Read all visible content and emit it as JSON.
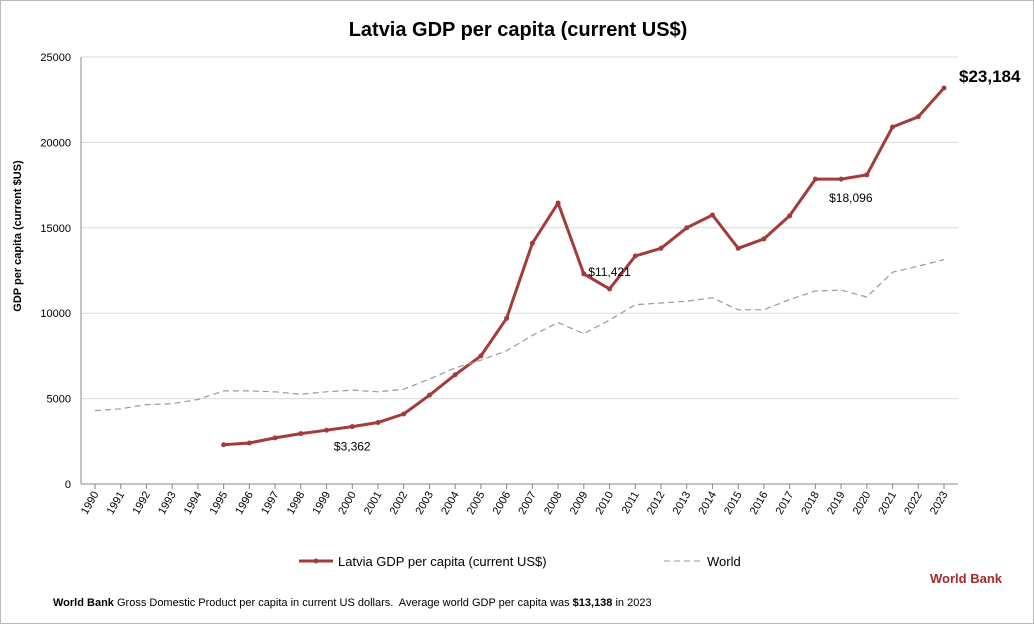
{
  "chart_data": {
    "type": "line",
    "title": "Latvia GDP per capita (current US$)",
    "ylabel": "GDP per capita (current $US)",
    "xlabel": "",
    "ylim": [
      0,
      25000
    ],
    "yticks": [
      0,
      5000,
      10000,
      15000,
      20000,
      25000
    ],
    "x": [
      1990,
      1991,
      1992,
      1993,
      1994,
      1995,
      1996,
      1997,
      1998,
      1999,
      2000,
      2001,
      2002,
      2003,
      2004,
      2005,
      2006,
      2007,
      2008,
      2009,
      2010,
      2011,
      2012,
      2013,
      2014,
      2015,
      2016,
      2017,
      2018,
      2019,
      2020,
      2021,
      2022,
      2023
    ],
    "grid": "horizontal",
    "legend": "bottom",
    "series": [
      {
        "name": "Latvia GDP per capita (current US$)",
        "color": "#a33b3b",
        "style": "solid-markers",
        "values": [
          null,
          null,
          null,
          null,
          null,
          2300,
          2400,
          2700,
          2950,
          3150,
          3362,
          3600,
          4100,
          5200,
          6400,
          7500,
          9700,
          14100,
          16450,
          12300,
          11421,
          13350,
          13800,
          15000,
          15750,
          13800,
          14350,
          15700,
          17850,
          17850,
          18096,
          20900,
          21500,
          23184
        ]
      },
      {
        "name": "World",
        "color": "#999999",
        "style": "dashed",
        "values": [
          4300,
          4400,
          4650,
          4700,
          4950,
          5450,
          5450,
          5400,
          5250,
          5400,
          5500,
          5400,
          5550,
          6150,
          6800,
          7250,
          7800,
          8700,
          9450,
          8800,
          9600,
          10500,
          10600,
          10700,
          10900,
          10200,
          10200,
          10800,
          11300,
          11350,
          10950,
          12400,
          12750,
          13138
        ]
      }
    ],
    "annotations": [
      {
        "text": "$3,362",
        "year": 2000
      },
      {
        "text": "$11,421",
        "year": 2010
      },
      {
        "text": "$18,096",
        "year": 2020
      },
      {
        "text": "$23,184",
        "year": 2023
      }
    ]
  },
  "source_label": "World Bank",
  "footer": {
    "bold1": "World Bank",
    "text1": " Gross Domestic Product per capita in current US dollars.  Average world GDP per capita was ",
    "bold2": "$13,138",
    "text2": " in 2023"
  }
}
